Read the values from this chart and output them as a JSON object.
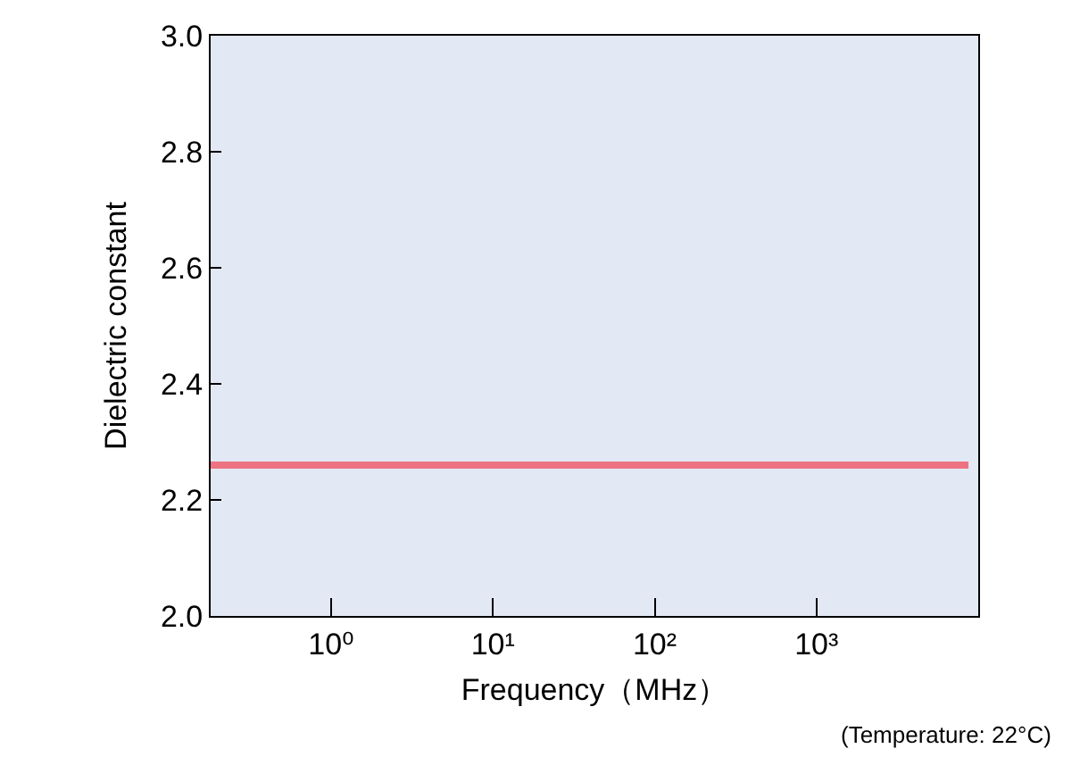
{
  "chart_data": {
    "type": "line",
    "xlabel": "Frequency（MHz）",
    "ylabel": "Dielectric constant",
    "x": [
      0.18,
      8700
    ],
    "series": [
      {
        "color": "#ee7382",
        "values": [
          2.26,
          2.26
        ]
      }
    ],
    "log": "x",
    "xlim": [
      0.18,
      10000
    ],
    "xticks": [
      {
        "value": 1,
        "label": "10⁰"
      },
      {
        "value": 10,
        "label": "10¹"
      },
      {
        "value": 100,
        "label": "10²"
      },
      {
        "value": 1000,
        "label": "10³"
      }
    ],
    "ylim": [
      2.0,
      3.0
    ],
    "yticks": [
      {
        "value": 2,
        "label": "2.0"
      },
      2.2,
      2.4,
      2.6,
      2.8,
      {
        "value": 3,
        "label": "3.0"
      }
    ],
    "grid": false,
    "marker": "none",
    "line_style": "solid",
    "annotations": [
      "(Temperature: 22°C)"
    ]
  }
}
